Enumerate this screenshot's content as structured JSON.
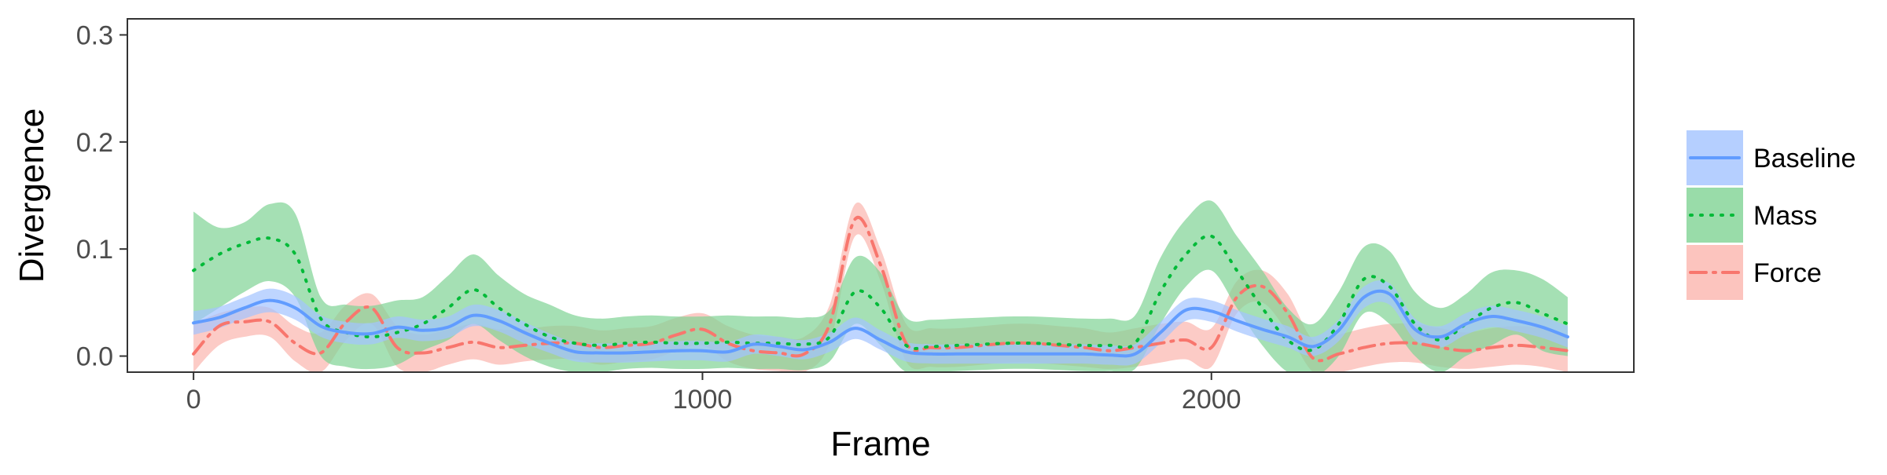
{
  "chart_data": {
    "type": "line",
    "xlabel": "Frame",
    "ylabel": "Divergence",
    "xlim": [
      -130,
      2830
    ],
    "ylim": [
      -0.015,
      0.315
    ],
    "x_ticks": [
      0,
      1000,
      2000
    ],
    "y_ticks": [
      0.0,
      0.1,
      0.2,
      0.3
    ],
    "y_tick_labels": [
      "0.0",
      "0.1",
      "0.2",
      "0.3"
    ],
    "grid": false,
    "legend_position": "right",
    "x": [
      0,
      50,
      100,
      150,
      200,
      250,
      300,
      350,
      400,
      450,
      500,
      550,
      600,
      650,
      700,
      750,
      800,
      850,
      900,
      950,
      1000,
      1050,
      1100,
      1150,
      1200,
      1250,
      1300,
      1350,
      1400,
      1450,
      1500,
      1550,
      1600,
      1650,
      1700,
      1750,
      1800,
      1850,
      1900,
      1950,
      2000,
      2050,
      2100,
      2150,
      2200,
      2250,
      2300,
      2350,
      2400,
      2450,
      2500,
      2550,
      2600,
      2650,
      2700
    ],
    "series": [
      {
        "name": "Baseline",
        "color": "#619CFF",
        "band_color": "#A3C3FF",
        "dash": "solid",
        "values": [
          0.031,
          0.036,
          0.045,
          0.052,
          0.045,
          0.028,
          0.022,
          0.021,
          0.027,
          0.024,
          0.027,
          0.038,
          0.033,
          0.022,
          0.012,
          0.004,
          0.003,
          0.003,
          0.004,
          0.005,
          0.005,
          0.004,
          0.011,
          0.009,
          0.006,
          0.013,
          0.026,
          0.015,
          0.004,
          0.002,
          0.002,
          0.002,
          0.002,
          0.002,
          0.002,
          0.002,
          0.001,
          0.002,
          0.022,
          0.043,
          0.042,
          0.033,
          0.025,
          0.018,
          0.009,
          0.024,
          0.055,
          0.058,
          0.025,
          0.018,
          0.03,
          0.037,
          0.033,
          0.027,
          0.018
        ],
        "lower": [
          0.02,
          0.026,
          0.035,
          0.041,
          0.034,
          0.018,
          0.012,
          0.011,
          0.017,
          0.014,
          0.017,
          0.028,
          0.023,
          0.012,
          0.003,
          -0.005,
          -0.006,
          -0.006,
          -0.005,
          -0.004,
          -0.004,
          -0.005,
          0.002,
          0.0,
          -0.003,
          0.004,
          0.016,
          0.006,
          -0.005,
          -0.007,
          -0.007,
          -0.007,
          -0.007,
          -0.007,
          -0.007,
          -0.007,
          -0.008,
          -0.007,
          0.012,
          0.033,
          0.032,
          0.023,
          0.015,
          0.008,
          0.0,
          0.014,
          0.045,
          0.048,
          0.015,
          0.008,
          0.02,
          0.027,
          0.023,
          0.017,
          0.008
        ],
        "upper": [
          0.042,
          0.046,
          0.055,
          0.063,
          0.056,
          0.038,
          0.032,
          0.031,
          0.037,
          0.034,
          0.037,
          0.048,
          0.043,
          0.032,
          0.021,
          0.013,
          0.012,
          0.012,
          0.013,
          0.014,
          0.014,
          0.013,
          0.02,
          0.018,
          0.015,
          0.022,
          0.036,
          0.024,
          0.013,
          0.011,
          0.011,
          0.011,
          0.011,
          0.011,
          0.011,
          0.011,
          0.01,
          0.011,
          0.032,
          0.053,
          0.052,
          0.043,
          0.035,
          0.028,
          0.018,
          0.034,
          0.065,
          0.068,
          0.035,
          0.028,
          0.04,
          0.047,
          0.043,
          0.037,
          0.028
        ]
      },
      {
        "name": "Mass",
        "color": "#00BA38",
        "band_color": "#7FD394",
        "dash": "dotted",
        "values": [
          0.08,
          0.095,
          0.105,
          0.11,
          0.095,
          0.035,
          0.022,
          0.018,
          0.022,
          0.03,
          0.045,
          0.062,
          0.045,
          0.03,
          0.018,
          0.012,
          0.01,
          0.012,
          0.013,
          0.012,
          0.012,
          0.013,
          0.012,
          0.012,
          0.011,
          0.018,
          0.06,
          0.045,
          0.01,
          0.009,
          0.01,
          0.011,
          0.012,
          0.012,
          0.011,
          0.01,
          0.01,
          0.012,
          0.06,
          0.095,
          0.112,
          0.08,
          0.045,
          0.015,
          0.006,
          0.03,
          0.072,
          0.065,
          0.03,
          0.015,
          0.03,
          0.045,
          0.05,
          0.04,
          0.03
        ],
        "lower": [
          0.03,
          0.045,
          0.06,
          0.07,
          0.055,
          0.0,
          -0.01,
          -0.012,
          -0.008,
          0.005,
          0.015,
          0.03,
          0.015,
          0.0,
          -0.01,
          -0.015,
          -0.015,
          -0.012,
          -0.011,
          -0.012,
          -0.012,
          -0.011,
          -0.012,
          -0.012,
          -0.013,
          -0.005,
          0.03,
          0.01,
          -0.015,
          -0.015,
          -0.014,
          -0.013,
          -0.012,
          -0.012,
          -0.013,
          -0.014,
          -0.014,
          -0.012,
          0.03,
          0.065,
          0.08,
          0.045,
          0.01,
          -0.015,
          -0.02,
          0.0,
          0.04,
          0.03,
          0.0,
          -0.015,
          0.0,
          0.01,
          0.02,
          0.005,
          0.0
        ],
        "upper": [
          0.135,
          0.12,
          0.125,
          0.142,
          0.133,
          0.055,
          0.048,
          0.047,
          0.052,
          0.055,
          0.075,
          0.095,
          0.075,
          0.058,
          0.048,
          0.038,
          0.035,
          0.037,
          0.038,
          0.037,
          0.037,
          0.038,
          0.037,
          0.037,
          0.036,
          0.043,
          0.092,
          0.078,
          0.036,
          0.034,
          0.035,
          0.036,
          0.037,
          0.037,
          0.036,
          0.035,
          0.035,
          0.038,
          0.092,
          0.128,
          0.145,
          0.112,
          0.08,
          0.045,
          0.03,
          0.06,
          0.102,
          0.098,
          0.06,
          0.045,
          0.058,
          0.078,
          0.08,
          0.072,
          0.055
        ]
      },
      {
        "name": "Force",
        "color": "#F8766D",
        "band_color": "#FBB5AE",
        "dash": "dashdot",
        "values": [
          0.002,
          0.028,
          0.032,
          0.032,
          0.012,
          0.003,
          0.032,
          0.045,
          0.008,
          0.003,
          0.008,
          0.013,
          0.008,
          0.01,
          0.012,
          0.012,
          0.008,
          0.01,
          0.012,
          0.02,
          0.025,
          0.012,
          0.005,
          0.003,
          0.002,
          0.03,
          0.128,
          0.085,
          0.012,
          0.008,
          0.008,
          0.01,
          0.012,
          0.012,
          0.01,
          0.008,
          0.005,
          0.008,
          0.012,
          0.015,
          0.008,
          0.055,
          0.065,
          0.04,
          -0.002,
          0.002,
          0.008,
          0.012,
          0.012,
          0.008,
          0.005,
          0.008,
          0.01,
          0.008,
          0.005
        ],
        "lower": [
          -0.015,
          0.01,
          0.018,
          0.018,
          -0.005,
          -0.015,
          0.015,
          0.03,
          -0.01,
          -0.015,
          -0.008,
          -0.003,
          -0.008,
          -0.005,
          -0.003,
          -0.003,
          -0.008,
          -0.005,
          -0.003,
          0.005,
          0.01,
          -0.005,
          -0.012,
          -0.014,
          -0.015,
          0.012,
          0.112,
          0.07,
          -0.005,
          -0.01,
          -0.01,
          -0.008,
          -0.006,
          -0.006,
          -0.008,
          -0.01,
          -0.012,
          -0.01,
          -0.006,
          -0.003,
          -0.01,
          0.04,
          0.05,
          0.022,
          -0.015,
          -0.015,
          -0.01,
          -0.006,
          -0.006,
          -0.01,
          -0.012,
          -0.01,
          -0.008,
          -0.01,
          -0.015
        ],
        "upper": [
          0.03,
          0.04,
          0.045,
          0.045,
          0.028,
          0.022,
          0.048,
          0.058,
          0.028,
          0.02,
          0.025,
          0.03,
          0.025,
          0.025,
          0.028,
          0.028,
          0.024,
          0.026,
          0.028,
          0.036,
          0.04,
          0.028,
          0.02,
          0.018,
          0.018,
          0.048,
          0.142,
          0.1,
          0.03,
          0.026,
          0.026,
          0.028,
          0.03,
          0.03,
          0.028,
          0.026,
          0.022,
          0.026,
          0.03,
          0.032,
          0.026,
          0.07,
          0.08,
          0.058,
          0.015,
          0.02,
          0.026,
          0.03,
          0.03,
          0.026,
          0.022,
          0.026,
          0.028,
          0.026,
          0.02
        ]
      }
    ]
  }
}
